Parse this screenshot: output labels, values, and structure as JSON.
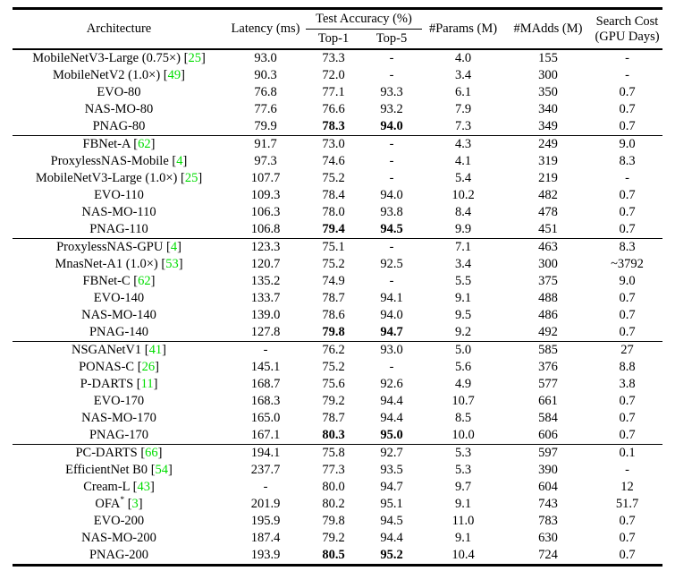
{
  "colors": {
    "citation_green": "#00dd00",
    "text": "#000000",
    "background": "#ffffff"
  },
  "header": {
    "architecture": "Architecture",
    "latency": "Latency (ms)",
    "test_accuracy": "Test Accuracy (%)",
    "top1": "Top-1",
    "top5": "Top-5",
    "params": "#Params (M)",
    "madds": "#MAdds (M)",
    "search_cost_line1": "Search Cost",
    "search_cost_line2": "(GPU Days)"
  },
  "table": {
    "groups": [
      {
        "rows": [
          {
            "name": "MobileNetV3-Large (0.75×)",
            "cite": "25",
            "latency": "93.0",
            "top1": "73.3",
            "top5": "-",
            "params": "4.0",
            "madds": "155",
            "cost": "-",
            "bold": false
          },
          {
            "name": "MobileNetV2 (1.0×)",
            "cite": "49",
            "latency": "90.3",
            "top1": "72.0",
            "top5": "-",
            "params": "3.4",
            "madds": "300",
            "cost": "-",
            "bold": false
          },
          {
            "name": "EVO-80",
            "latency": "76.8",
            "top1": "77.1",
            "top5": "93.3",
            "params": "6.1",
            "madds": "350",
            "cost": "0.7",
            "bold": false
          },
          {
            "name": "NAS-MO-80",
            "latency": "77.6",
            "top1": "76.6",
            "top5": "93.2",
            "params": "7.9",
            "madds": "340",
            "cost": "0.7",
            "bold": false
          },
          {
            "name": "PNAG-80",
            "latency": "79.9",
            "top1": "78.3",
            "top5": "94.0",
            "params": "7.3",
            "madds": "349",
            "cost": "0.7",
            "bold": true
          }
        ]
      },
      {
        "rows": [
          {
            "name": "FBNet-A",
            "cite": "62",
            "latency": "91.7",
            "top1": "73.0",
            "top5": "-",
            "params": "4.3",
            "madds": "249",
            "cost": "9.0",
            "bold": false
          },
          {
            "name": "ProxylessNAS-Mobile",
            "cite": "4",
            "latency": "97.3",
            "top1": "74.6",
            "top5": "-",
            "params": "4.1",
            "madds": "319",
            "cost": "8.3",
            "bold": false
          },
          {
            "name": "MobileNetV3-Large (1.0×)",
            "cite": "25",
            "latency": "107.7",
            "top1": "75.2",
            "top5": "-",
            "params": "5.4",
            "madds": "219",
            "cost": "-",
            "bold": false
          },
          {
            "name": "EVO-110",
            "latency": "109.3",
            "top1": "78.4",
            "top5": "94.0",
            "params": "10.2",
            "madds": "482",
            "cost": "0.7",
            "bold": false
          },
          {
            "name": "NAS-MO-110",
            "latency": "106.3",
            "top1": "78.0",
            "top5": "93.8",
            "params": "8.4",
            "madds": "478",
            "cost": "0.7",
            "bold": false
          },
          {
            "name": "PNAG-110",
            "latency": "106.8",
            "top1": "79.4",
            "top5": "94.5",
            "params": "9.9",
            "madds": "451",
            "cost": "0.7",
            "bold": true
          }
        ]
      },
      {
        "rows": [
          {
            "name": "ProxylessNAS-GPU",
            "cite": "4",
            "latency": "123.3",
            "top1": "75.1",
            "top5": "-",
            "params": "7.1",
            "madds": "463",
            "cost": "8.3",
            "bold": false
          },
          {
            "name": "MnasNet-A1 (1.0×)",
            "cite": "53",
            "latency": "120.7",
            "top1": "75.2",
            "top5": "92.5",
            "params": "3.4",
            "madds": "300",
            "cost": "~3792",
            "bold": false
          },
          {
            "name": "FBNet-C",
            "cite": "62",
            "latency": "135.2",
            "top1": "74.9",
            "top5": "-",
            "params": "5.5",
            "madds": "375",
            "cost": "9.0",
            "bold": false
          },
          {
            "name": "EVO-140",
            "latency": "133.7",
            "top1": "78.7",
            "top5": "94.1",
            "params": "9.1",
            "madds": "488",
            "cost": "0.7",
            "bold": false
          },
          {
            "name": "NAS-MO-140",
            "latency": "139.0",
            "top1": "78.6",
            "top5": "94.0",
            "params": "9.5",
            "madds": "486",
            "cost": "0.7",
            "bold": false
          },
          {
            "name": "PNAG-140",
            "latency": "127.8",
            "top1": "79.8",
            "top5": "94.7",
            "params": "9.2",
            "madds": "492",
            "cost": "0.7",
            "bold": true
          }
        ]
      },
      {
        "rows": [
          {
            "name": "NSGANetV1",
            "cite": "41",
            "latency": "-",
            "top1": "76.2",
            "top5": "93.0",
            "params": "5.0",
            "madds": "585",
            "cost": "27",
            "bold": false
          },
          {
            "name": "PONAS-C",
            "cite": "26",
            "latency": "145.1",
            "top1": "75.2",
            "top5": "-",
            "params": "5.6",
            "madds": "376",
            "cost": "8.8",
            "bold": false
          },
          {
            "name": "P-DARTS",
            "cite": "11",
            "latency": "168.7",
            "top1": "75.6",
            "top5": "92.6",
            "params": "4.9",
            "madds": "577",
            "cost": "3.8",
            "bold": false
          },
          {
            "name": "EVO-170",
            "latency": "168.3",
            "top1": "79.2",
            "top5": "94.4",
            "params": "10.7",
            "madds": "661",
            "cost": "0.7",
            "bold": false
          },
          {
            "name": "NAS-MO-170",
            "latency": "165.0",
            "top1": "78.7",
            "top5": "94.4",
            "params": "8.5",
            "madds": "584",
            "cost": "0.7",
            "bold": false
          },
          {
            "name": "PNAG-170",
            "latency": "167.1",
            "top1": "80.3",
            "top5": "95.0",
            "params": "10.0",
            "madds": "606",
            "cost": "0.7",
            "bold": true
          }
        ]
      },
      {
        "rows": [
          {
            "name": "PC-DARTS",
            "cite": "66",
            "latency": "194.1",
            "top1": "75.8",
            "top5": "92.7",
            "params": "5.3",
            "madds": "597",
            "cost": "0.1",
            "bold": false
          },
          {
            "name": "EfficientNet B0",
            "cite": "54",
            "latency": "237.7",
            "top1": "77.3",
            "top5": "93.5",
            "params": "5.3",
            "madds": "390",
            "cost": "-",
            "bold": false
          },
          {
            "name": "Cream-L",
            "cite": "43",
            "latency": "-",
            "top1": "80.0",
            "top5": "94.7",
            "params": "9.7",
            "madds": "604",
            "cost": "12",
            "bold": false
          },
          {
            "name": "OFA",
            "sup": "*",
            "cite": "3",
            "latency": "201.9",
            "top1": "80.2",
            "top5": "95.1",
            "params": "9.1",
            "madds": "743",
            "cost": "51.7",
            "bold": false
          },
          {
            "name": "EVO-200",
            "latency": "195.9",
            "top1": "79.8",
            "top5": "94.5",
            "params": "11.0",
            "madds": "783",
            "cost": "0.7",
            "bold": false
          },
          {
            "name": "NAS-MO-200",
            "latency": "187.4",
            "top1": "79.2",
            "top5": "94.4",
            "params": "9.1",
            "madds": "630",
            "cost": "0.7",
            "bold": false
          },
          {
            "name": "PNAG-200",
            "latency": "193.9",
            "top1": "80.5",
            "top5": "95.2",
            "params": "10.4",
            "madds": "724",
            "cost": "0.7",
            "bold": true
          }
        ]
      }
    ]
  }
}
